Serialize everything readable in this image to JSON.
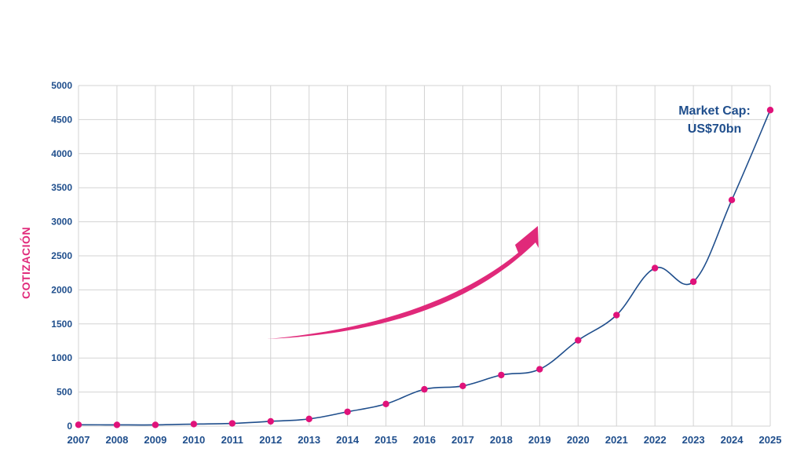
{
  "chart_data": {
    "type": "line",
    "title": "",
    "xlabel": "",
    "ylabel": "COTIZACIÓN",
    "x": [
      2007,
      2008,
      2009,
      2010,
      2011,
      2012,
      2013,
      2014,
      2015,
      2016,
      2017,
      2018,
      2019,
      2020,
      2021,
      2022,
      2023,
      2024,
      2025
    ],
    "series": [
      {
        "values": [
          20,
          18,
          18,
          30,
          40,
          70,
          105,
          210,
          325,
          540,
          590,
          750,
          835,
          1260,
          1630,
          2320,
          2120,
          3320,
          4640
        ]
      }
    ],
    "ylim": [
      0,
      5000
    ],
    "yticks": [
      0,
      500,
      1000,
      1500,
      2000,
      2500,
      3000,
      3500,
      4000,
      4500,
      5000
    ],
    "grid": true,
    "annotation": {
      "line1": "Market Cap:",
      "line2": "US$70bn"
    },
    "colors": {
      "line": "#1f4e8c",
      "marker": "#e0127a",
      "arrow": "#e0297a",
      "axis_text": "#1f4e8c",
      "ylabel": "#e0297a"
    }
  }
}
